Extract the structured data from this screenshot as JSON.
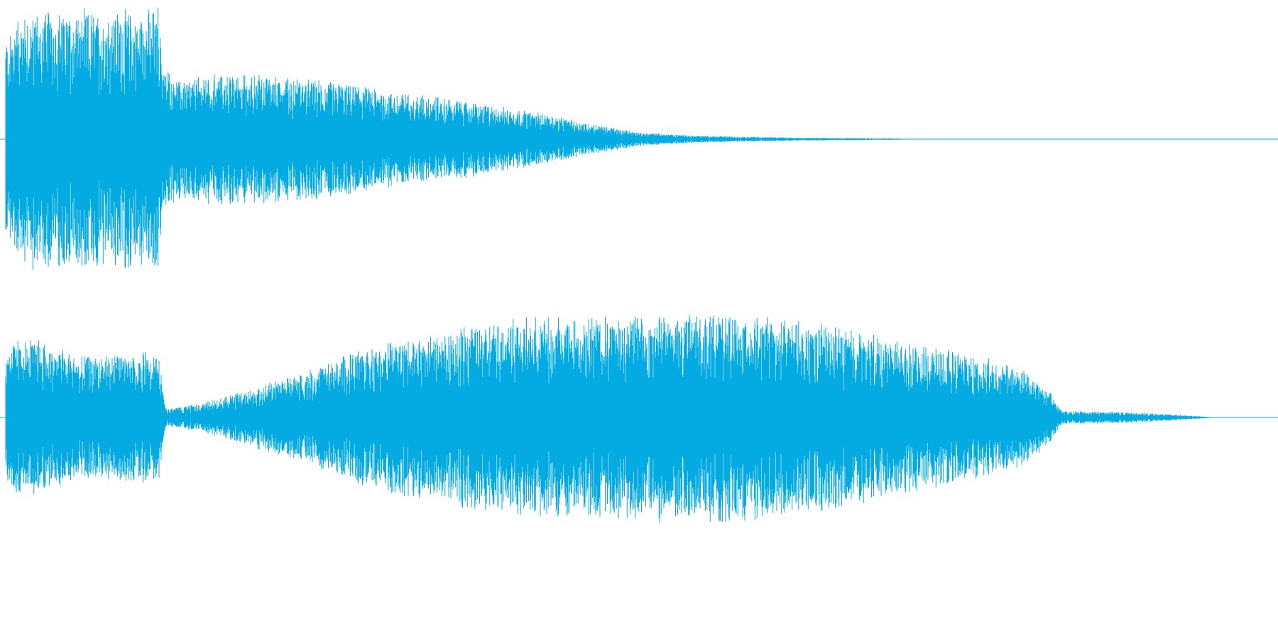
{
  "waveform": {
    "color": "#04abe3",
    "background": "#ffffff",
    "channels": [
      {
        "name": "channel-1",
        "duration_fraction": 0.718,
        "envelope": [
          [
            0.0,
            0.8
          ],
          [
            0.003,
            0.85
          ],
          [
            0.018,
            1.0
          ],
          [
            0.1,
            1.0
          ],
          [
            0.12,
            1.0
          ],
          [
            0.123,
            0.6
          ],
          [
            0.135,
            0.45
          ],
          [
            0.16,
            0.5
          ],
          [
            0.2,
            0.5
          ],
          [
            0.25,
            0.45
          ],
          [
            0.3,
            0.37
          ],
          [
            0.36,
            0.3
          ],
          [
            0.42,
            0.2
          ],
          [
            0.47,
            0.1
          ],
          [
            0.5,
            0.05
          ],
          [
            0.55,
            0.025
          ],
          [
            0.62,
            0.012
          ],
          [
            0.7,
            0.005
          ],
          [
            0.718,
            0.0
          ]
        ]
      },
      {
        "name": "channel-2",
        "duration_fraction": 0.953,
        "envelope": [
          [
            0.0,
            0.55
          ],
          [
            0.003,
            0.7
          ],
          [
            0.03,
            0.7
          ],
          [
            0.06,
            0.55
          ],
          [
            0.11,
            0.6
          ],
          [
            0.12,
            0.6
          ],
          [
            0.126,
            0.08
          ],
          [
            0.15,
            0.12
          ],
          [
            0.18,
            0.22
          ],
          [
            0.23,
            0.4
          ],
          [
            0.28,
            0.62
          ],
          [
            0.32,
            0.75
          ],
          [
            0.4,
            0.9
          ],
          [
            0.48,
            0.95
          ],
          [
            0.58,
            0.95
          ],
          [
            0.65,
            0.85
          ],
          [
            0.7,
            0.7
          ],
          [
            0.76,
            0.58
          ],
          [
            0.8,
            0.45
          ],
          [
            0.82,
            0.25
          ],
          [
            0.83,
            0.06
          ],
          [
            0.88,
            0.05
          ],
          [
            0.92,
            0.025
          ],
          [
            0.953,
            0.0
          ]
        ]
      }
    ]
  }
}
